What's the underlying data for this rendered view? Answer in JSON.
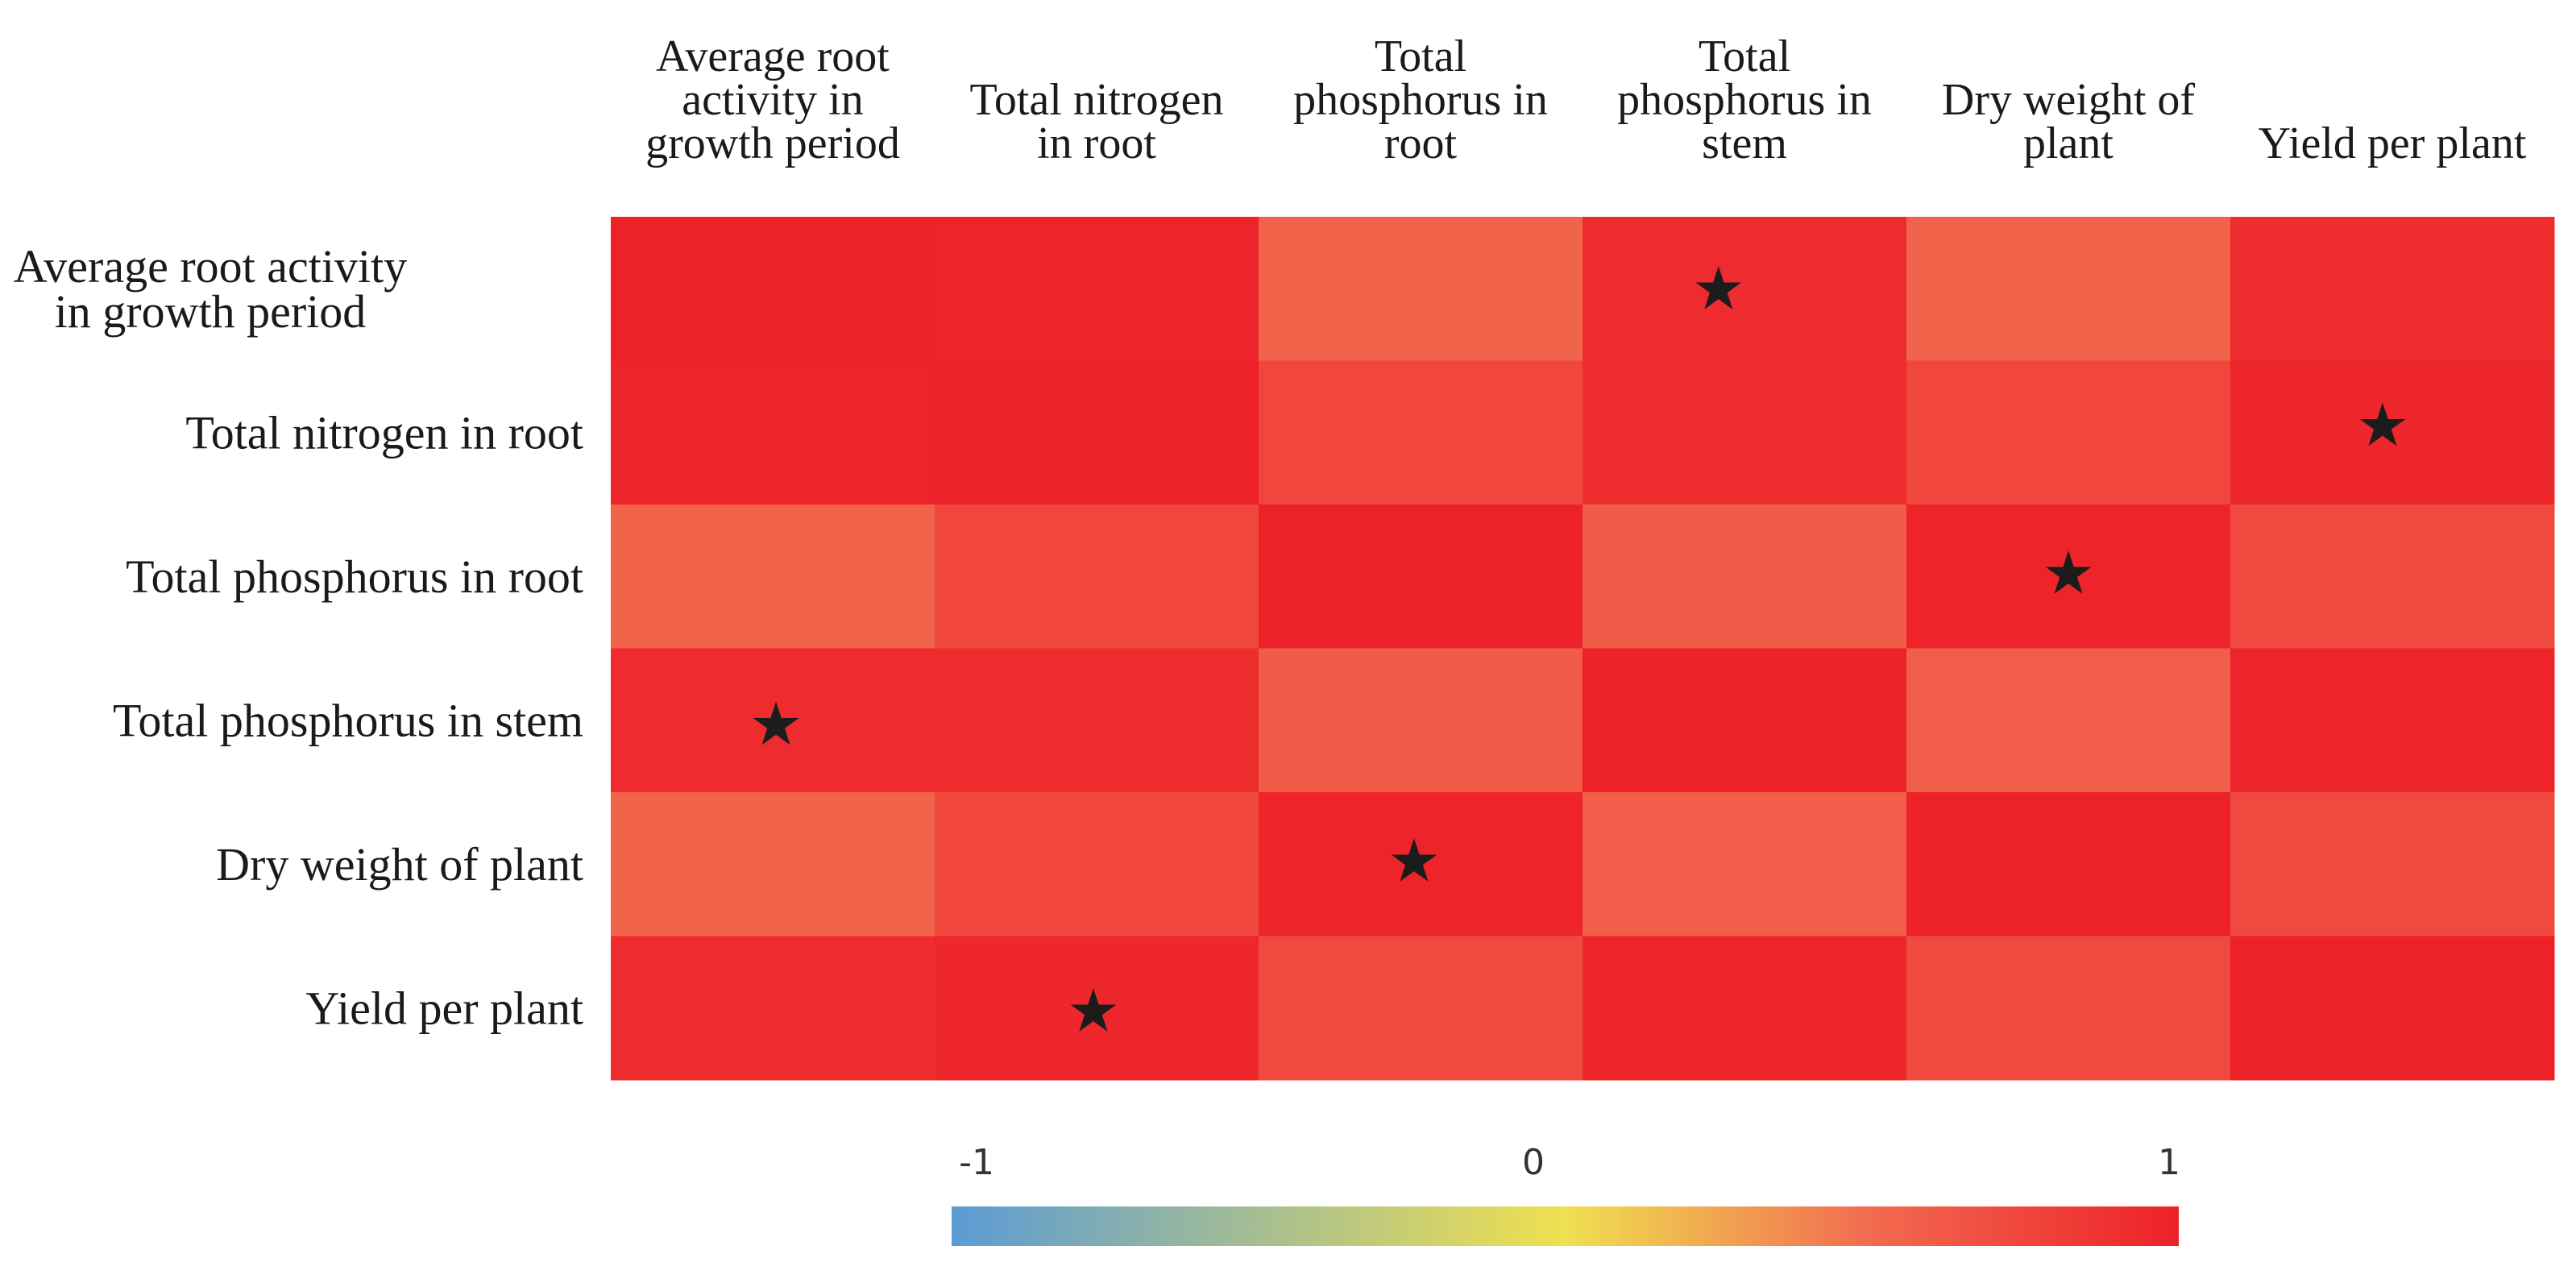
{
  "chart_data": {
    "type": "heatmap",
    "title": "",
    "variables": [
      [
        "Average root",
        "activity in",
        "growth period"
      ],
      [
        "Total nitrogen",
        "in root"
      ],
      [
        "Total",
        "phosphorus in",
        "root"
      ],
      [
        "Total",
        "phosphorus in",
        "stem"
      ],
      [
        "Dry weight of",
        "plant"
      ],
      [
        "Yield per plant"
      ]
    ],
    "row_labels": [
      [
        "Average root activity",
        "in growth period"
      ],
      [
        "Total nitrogen in root"
      ],
      [
        "Total phosphorus in root"
      ],
      [
        "Total phosphorus in stem"
      ],
      [
        "Dry weight of plant"
      ],
      [
        "Yield per plant"
      ]
    ],
    "matrix": [
      [
        1.0,
        0.98,
        0.55,
        0.93,
        0.55,
        0.92
      ],
      [
        0.98,
        1.0,
        0.75,
        0.92,
        0.75,
        0.96
      ],
      [
        0.55,
        0.75,
        1.0,
        0.6,
        0.97,
        0.72
      ],
      [
        0.93,
        0.92,
        0.6,
        1.0,
        0.58,
        0.97
      ],
      [
        0.55,
        0.75,
        0.97,
        0.58,
        1.0,
        0.72
      ],
      [
        0.92,
        0.96,
        0.72,
        0.97,
        0.72,
        1.0
      ]
    ],
    "significance": [
      [
        false,
        false,
        false,
        true,
        false,
        false
      ],
      [
        false,
        false,
        false,
        false,
        false,
        true
      ],
      [
        false,
        false,
        false,
        false,
        true,
        false
      ],
      [
        true,
        false,
        false,
        false,
        false,
        false
      ],
      [
        false,
        false,
        true,
        false,
        false,
        false
      ],
      [
        false,
        true,
        false,
        false,
        false,
        false
      ]
    ],
    "significance_marker": "★",
    "significance_positions": [
      [
        0,
        3,
        0.42,
        0.5
      ],
      [
        1,
        5,
        0.47,
        0.45
      ],
      [
        2,
        4,
        0.5,
        0.48
      ],
      [
        3,
        0,
        0.51,
        0.53
      ],
      [
        4,
        2,
        0.48,
        0.48
      ],
      [
        5,
        1,
        0.49,
        0.52
      ]
    ],
    "colorbar": {
      "min": -1,
      "max": 1,
      "ticks": [
        {
          "value": -1,
          "label": "-1"
        },
        {
          "value": 0,
          "label": "0"
        },
        {
          "value": 1,
          "label": "1"
        }
      ],
      "stops": [
        {
          "value": -1,
          "color": "#5b9bd5"
        },
        {
          "value": 0,
          "color": "#f0e050"
        },
        {
          "value": 0.5,
          "color": "#f26a50"
        },
        {
          "value": 1,
          "color": "#ed2128"
        }
      ]
    }
  }
}
